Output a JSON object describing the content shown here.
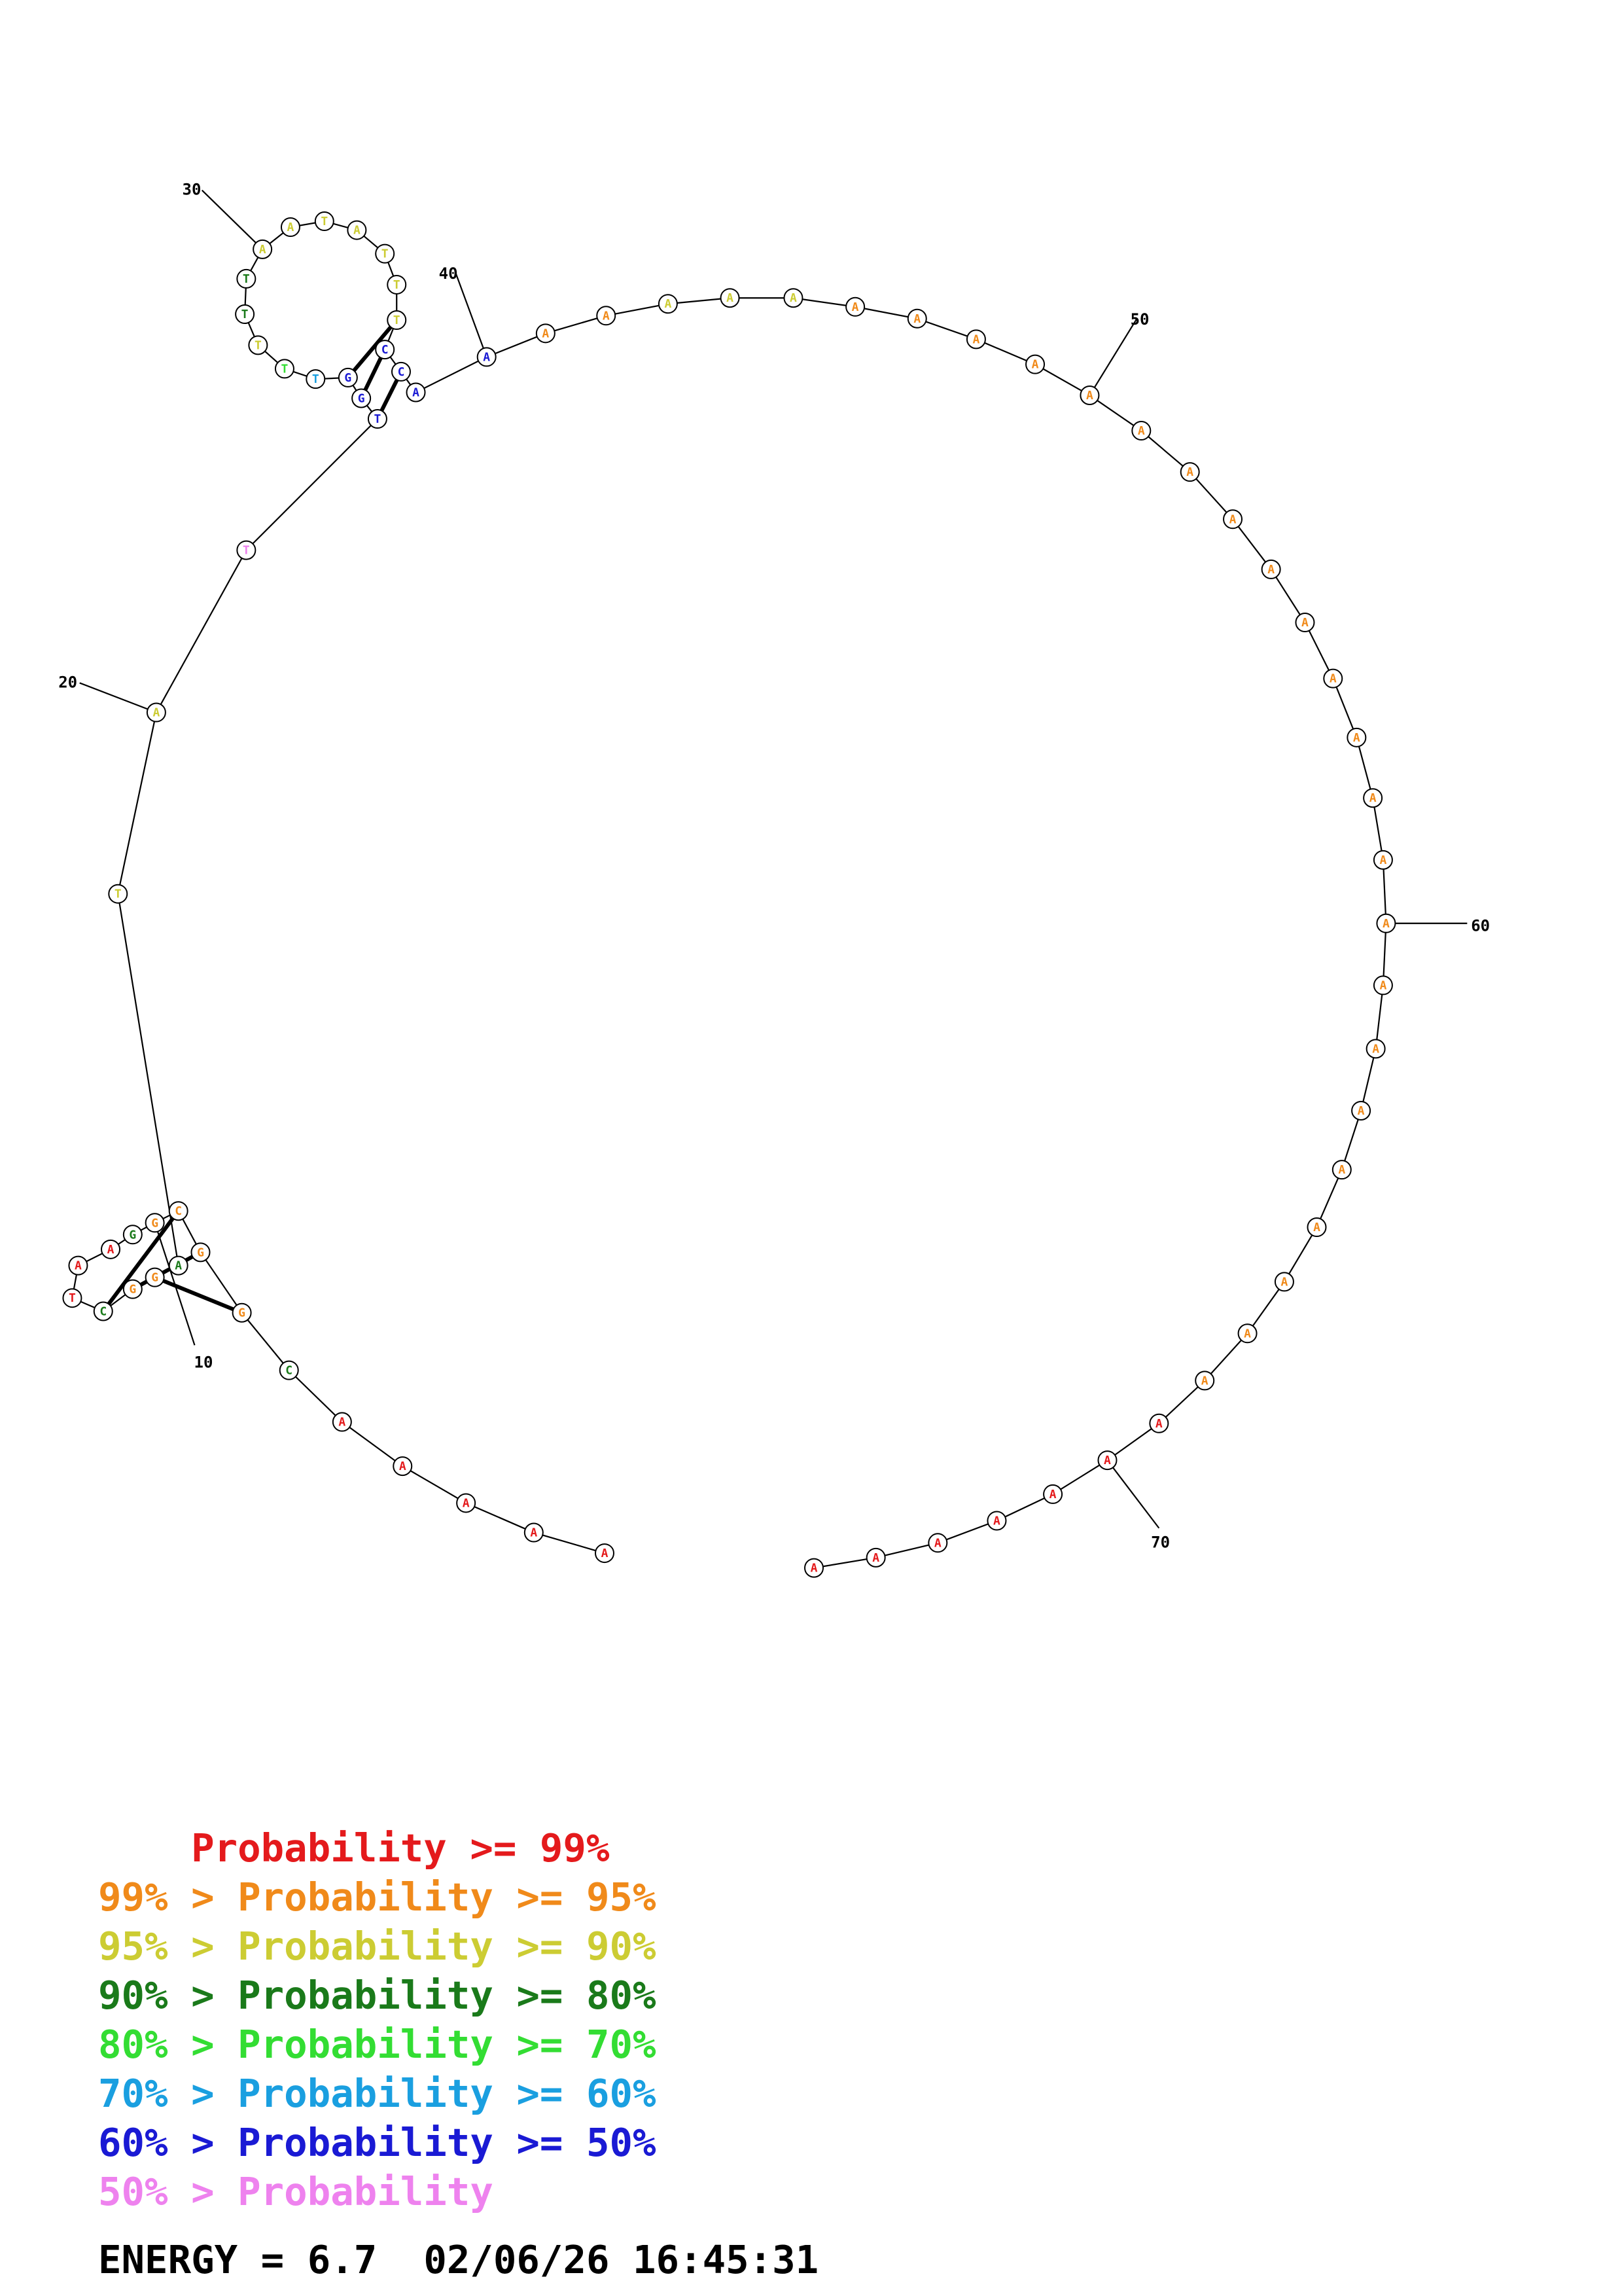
{
  "colors": {
    "p99": "#e41a1c",
    "p95": "#f08a1a",
    "p90": "#cccc33",
    "p80": "#1a7a1a",
    "p70": "#33dd33",
    "p60": "#1a9fe0",
    "p50": "#1a1ad4",
    "lt50": "#ee82ee"
  },
  "nucleotides": [
    {
      "n": 1,
      "b": "A",
      "c": "p99"
    },
    {
      "n": 2,
      "b": "A",
      "c": "p99"
    },
    {
      "n": 3,
      "b": "A",
      "c": "p99"
    },
    {
      "n": 4,
      "b": "A",
      "c": "p99"
    },
    {
      "n": 5,
      "b": "A",
      "c": "p99"
    },
    {
      "n": 6,
      "b": "C",
      "c": "p80"
    },
    {
      "n": 7,
      "b": "G",
      "c": "p95"
    },
    {
      "n": 8,
      "b": "G",
      "c": "p95"
    },
    {
      "n": 9,
      "b": "C",
      "c": "p95"
    },
    {
      "n": 10,
      "b": "G",
      "c": "p95"
    },
    {
      "n": 11,
      "b": "G",
      "c": "p80"
    },
    {
      "n": 12,
      "b": "A",
      "c": "p99"
    },
    {
      "n": 13,
      "b": "A",
      "c": "p99"
    },
    {
      "n": 14,
      "b": "T",
      "c": "p99"
    },
    {
      "n": 15,
      "b": "C",
      "c": "p80"
    },
    {
      "n": 16,
      "b": "G",
      "c": "p95"
    },
    {
      "n": 17,
      "b": "G",
      "c": "p95"
    },
    {
      "n": 18,
      "b": "A",
      "c": "p80"
    },
    {
      "n": 19,
      "b": "T",
      "c": "p90"
    },
    {
      "n": 20,
      "b": "A",
      "c": "p90"
    },
    {
      "n": 21,
      "b": "T",
      "c": "lt50"
    },
    {
      "n": 22,
      "b": "T",
      "c": "p50"
    },
    {
      "n": 23,
      "b": "G",
      "c": "p50"
    },
    {
      "n": 24,
      "b": "G",
      "c": "p50"
    },
    {
      "n": 25,
      "b": "T",
      "c": "p60"
    },
    {
      "n": 26,
      "b": "T",
      "c": "p70"
    },
    {
      "n": 27,
      "b": "T",
      "c": "p90"
    },
    {
      "n": 28,
      "b": "T",
      "c": "p80"
    },
    {
      "n": 29,
      "b": "T",
      "c": "p80"
    },
    {
      "n": 30,
      "b": "A",
      "c": "p90"
    },
    {
      "n": 31,
      "b": "A",
      "c": "p90"
    },
    {
      "n": 32,
      "b": "T",
      "c": "p90"
    },
    {
      "n": 33,
      "b": "A",
      "c": "p90"
    },
    {
      "n": 34,
      "b": "T",
      "c": "p90"
    },
    {
      "n": 35,
      "b": "T",
      "c": "p90"
    },
    {
      "n": 36,
      "b": "T",
      "c": "p90"
    },
    {
      "n": 37,
      "b": "C",
      "c": "p50"
    },
    {
      "n": 38,
      "b": "C",
      "c": "p50"
    },
    {
      "n": 39,
      "b": "A",
      "c": "p50"
    },
    {
      "n": 40,
      "b": "A",
      "c": "p50"
    },
    {
      "n": 41,
      "b": "A",
      "c": "p95"
    },
    {
      "n": 42,
      "b": "A",
      "c": "p95"
    },
    {
      "n": 43,
      "b": "A",
      "c": "p90"
    },
    {
      "n": 44,
      "b": "A",
      "c": "p90"
    },
    {
      "n": 45,
      "b": "A",
      "c": "p90"
    },
    {
      "n": 46,
      "b": "A",
      "c": "p95"
    },
    {
      "n": 47,
      "b": "A",
      "c": "p95"
    },
    {
      "n": 48,
      "b": "A",
      "c": "p95"
    },
    {
      "n": 49,
      "b": "A",
      "c": "p95"
    },
    {
      "n": 50,
      "b": "A",
      "c": "p95"
    },
    {
      "n": 51,
      "b": "A",
      "c": "p95"
    },
    {
      "n": 52,
      "b": "A",
      "c": "p95"
    },
    {
      "n": 53,
      "b": "A",
      "c": "p95"
    },
    {
      "n": 54,
      "b": "A",
      "c": "p95"
    },
    {
      "n": 55,
      "b": "A",
      "c": "p95"
    },
    {
      "n": 56,
      "b": "A",
      "c": "p95"
    },
    {
      "n": 57,
      "b": "A",
      "c": "p95"
    },
    {
      "n": 58,
      "b": "A",
      "c": "p95"
    },
    {
      "n": 59,
      "b": "A",
      "c": "p95"
    },
    {
      "n": 60,
      "b": "A",
      "c": "p95"
    },
    {
      "n": 61,
      "b": "A",
      "c": "p95"
    },
    {
      "n": 62,
      "b": "A",
      "c": "p95"
    },
    {
      "n": 63,
      "b": "A",
      "c": "p95"
    },
    {
      "n": 64,
      "b": "A",
      "c": "p95"
    },
    {
      "n": 65,
      "b": "A",
      "c": "p95"
    },
    {
      "n": 66,
      "b": "A",
      "c": "p95"
    },
    {
      "n": 67,
      "b": "A",
      "c": "p95"
    },
    {
      "n": 68,
      "b": "A",
      "c": "p95"
    },
    {
      "n": 69,
      "b": "A",
      "c": "p99"
    },
    {
      "n": 70,
      "b": "A",
      "c": "p99"
    },
    {
      "n": 71,
      "b": "A",
      "c": "p99"
    },
    {
      "n": 72,
      "b": "A",
      "c": "p99"
    },
    {
      "n": 73,
      "b": "A",
      "c": "p99"
    },
    {
      "n": 74,
      "b": "A",
      "c": "p99"
    },
    {
      "n": 75,
      "b": "A",
      "c": "p99"
    }
  ],
  "base_pairs": [
    [
      7,
      17
    ],
    [
      8,
      16
    ],
    [
      9,
      15
    ],
    [
      22,
      38
    ],
    [
      23,
      37
    ],
    [
      24,
      36
    ]
  ],
  "tick_labels": [
    "10",
    "20",
    "30",
    "40",
    "50",
    "60",
    "70"
  ],
  "legend": [
    {
      "prefix": "    ",
      "main": "Probability >= 99%",
      "color": "p99"
    },
    {
      "prefix": "99% > ",
      "main": "Probability >= 95%",
      "color": "p95"
    },
    {
      "prefix": "95% > ",
      "main": "Probability >= 90%",
      "color": "p90"
    },
    {
      "prefix": "90% > ",
      "main": "Probability >= 80%",
      "color": "p80"
    },
    {
      "prefix": "80% > ",
      "main": "Probability >= 70%",
      "color": "p70"
    },
    {
      "prefix": "70% > ",
      "main": "Probability >= 60%",
      "color": "p60"
    },
    {
      "prefix": "60% > ",
      "main": "Probability >= 50%",
      "color": "p50"
    },
    {
      "prefix": "50% > ",
      "main": "Probability",
      "color": "lt50"
    }
  ],
  "footer": {
    "energy": "ENERGY = 6.7",
    "timestamp": "02/06/26 16:45:31"
  }
}
